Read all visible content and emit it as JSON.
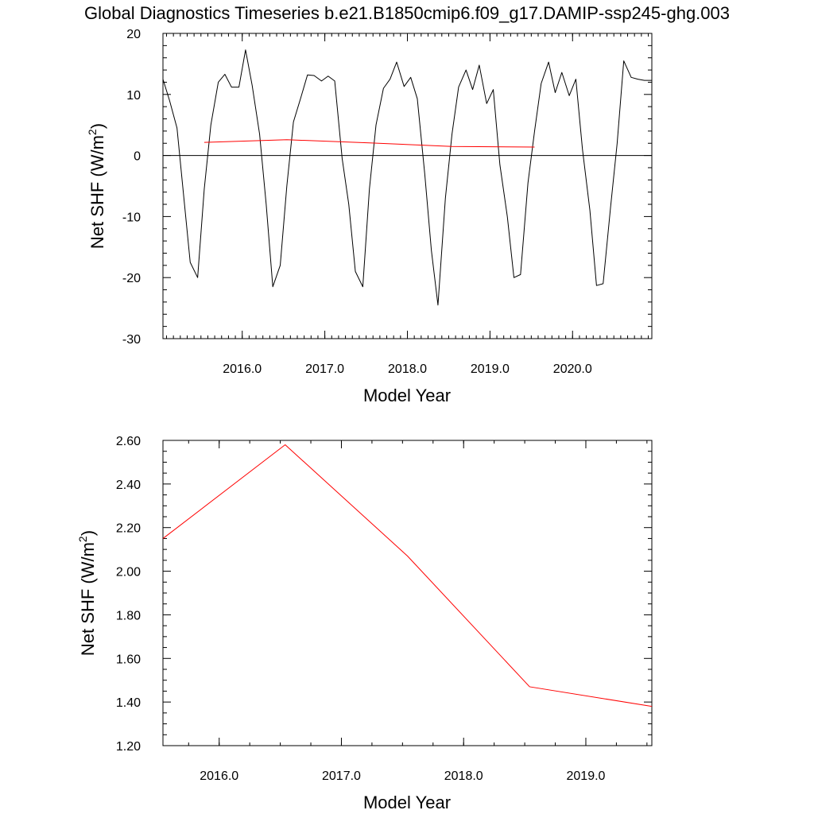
{
  "title": "Global Diagnostics Timeseries b.e21.B1850cmip6.f09_g17.DAMIP-ssp245-ghg.003",
  "chart_data": [
    {
      "type": "line",
      "title": "Global Diagnostics Timeseries b.e21.B1850cmip6.f09_g17.DAMIP-ssp245-ghg.003",
      "xlabel": "Model Year",
      "ylabel_main": "Net SHF (W/m",
      "ylabel_sup": "2",
      "ylabel_close": ")",
      "xlim": [
        2015.04,
        2020.96
      ],
      "ylim": [
        -30,
        20
      ],
      "x_ticks": [
        2016,
        2017,
        2018,
        2019,
        2020
      ],
      "x_tick_labels": [
        "2016.0",
        "2017.0",
        "2018.0",
        "2019.0",
        "2020.0"
      ],
      "y_ticks": [
        -30,
        -20,
        -10,
        0,
        10,
        20
      ],
      "y_tick_labels": [
        "-30",
        "-20",
        "-10",
        "0",
        "10",
        "20"
      ],
      "reference_line_y": 0,
      "series": [
        {
          "color": "#000000",
          "x": [
            2015.04,
            2015.12,
            2015.21,
            2015.29,
            2015.37,
            2015.46,
            2015.54,
            2015.62,
            2015.71,
            2015.79,
            2015.87,
            2015.96,
            2016.04,
            2016.12,
            2016.21,
            2016.29,
            2016.37,
            2016.46,
            2016.54,
            2016.62,
            2016.71,
            2016.79,
            2016.87,
            2016.96,
            2017.04,
            2017.12,
            2017.21,
            2017.29,
            2017.37,
            2017.46,
            2017.54,
            2017.62,
            2017.71,
            2017.79,
            2017.87,
            2017.96,
            2018.04,
            2018.12,
            2018.21,
            2018.29,
            2018.37,
            2018.46,
            2018.54,
            2018.62,
            2018.71,
            2018.79,
            2018.87,
            2018.96,
            2019.04,
            2019.12,
            2019.21,
            2019.29,
            2019.37,
            2019.46,
            2019.54,
            2019.62,
            2019.71,
            2019.79,
            2019.87,
            2019.96,
            2020.04,
            2020.12,
            2020.21,
            2020.29,
            2020.37,
            2020.46,
            2020.54,
            2020.62,
            2020.71,
            2020.79,
            2020.87,
            2020.96
          ],
          "y": [
            12.5,
            9,
            4.5,
            -6.5,
            -17.5,
            -20,
            -5.5,
            5,
            12,
            13.3,
            11.2,
            11.2,
            17.3,
            11.5,
            3.5,
            -8,
            -21.5,
            -18,
            -5,
            5.5,
            9.5,
            13.2,
            13.1,
            12.2,
            13,
            12.2,
            -0.5,
            -8,
            -19,
            -21.5,
            -5.5,
            5,
            11,
            12.5,
            15.3,
            11.3,
            12.8,
            9.3,
            -3,
            -15.5,
            -24.5,
            -7,
            3.5,
            11.2,
            14,
            10.8,
            14.8,
            8.5,
            10.8,
            -1.5,
            -10,
            -20,
            -19.5,
            -4.5,
            4,
            11.8,
            15.3,
            10.3,
            13.6,
            9.8,
            12.5,
            1,
            -9,
            -21.3,
            -21,
            -8.5,
            2,
            15.5,
            12.8,
            12.5,
            12.3,
            12.3
          ]
        },
        {
          "color": "#ff0000",
          "x": [
            2015.54,
            2016.54,
            2017.54,
            2018.54,
            2019.54
          ],
          "y": [
            2.15,
            2.58,
            2.07,
            1.47,
            1.38
          ]
        }
      ]
    },
    {
      "type": "line",
      "xlabel": "Model Year",
      "ylabel_main": "Net SHF (W/m",
      "ylabel_sup": "2",
      "ylabel_close": ")",
      "xlim": [
        2015.54,
        2019.54
      ],
      "ylim": [
        1.2,
        2.6
      ],
      "x_ticks": [
        2016,
        2017,
        2018,
        2019
      ],
      "x_tick_labels": [
        "2016.0",
        "2017.0",
        "2018.0",
        "2019.0"
      ],
      "y_ticks": [
        1.2,
        1.4,
        1.6,
        1.8,
        2.0,
        2.2,
        2.4,
        2.6
      ],
      "y_tick_labels": [
        "1.20",
        "1.40",
        "1.60",
        "1.80",
        "2.00",
        "2.20",
        "2.40",
        "2.60"
      ],
      "series": [
        {
          "color": "#ff0000",
          "x": [
            2015.54,
            2016.54,
            2017.54,
            2018.54,
            2019.54
          ],
          "y": [
            2.15,
            2.58,
            2.07,
            1.47,
            1.38
          ]
        }
      ]
    }
  ]
}
